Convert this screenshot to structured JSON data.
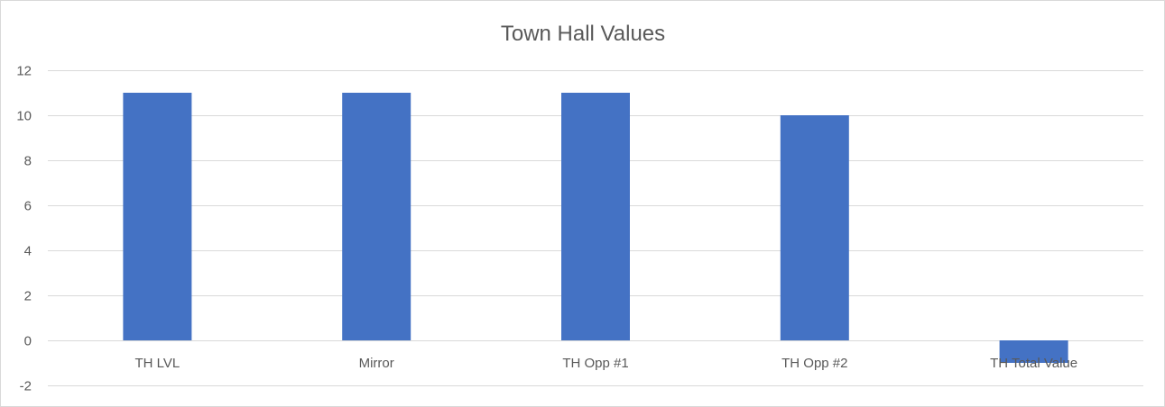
{
  "chart_data": {
    "type": "bar",
    "title": "Town Hall Values",
    "xlabel": "",
    "ylabel": "",
    "categories": [
      "TH LVL",
      "Mirror",
      "TH Opp #1",
      "TH Opp #2",
      "TH Total Value"
    ],
    "values": [
      11,
      11,
      11,
      10,
      -1
    ],
    "ylim": [
      -2,
      12
    ],
    "yticks": [
      -2,
      0,
      2,
      4,
      6,
      8,
      10,
      12
    ],
    "grid": true,
    "legend": "none",
    "bar_color": "#4472c4"
  }
}
